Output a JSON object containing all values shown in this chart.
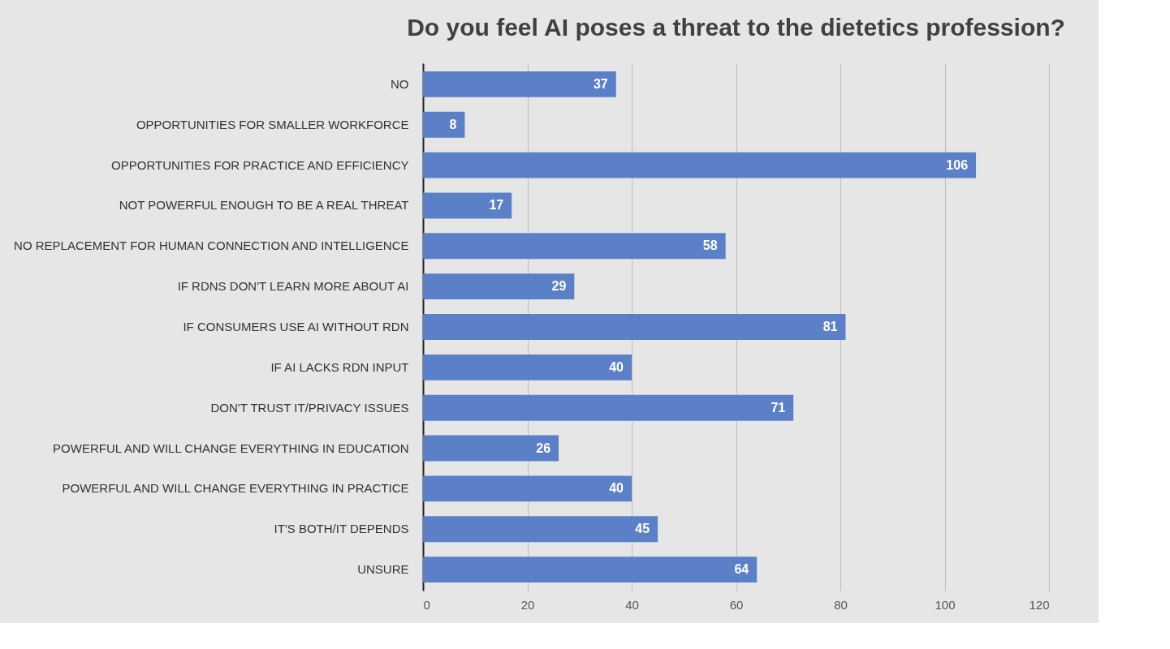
{
  "chart_data": {
    "type": "bar",
    "orientation": "horizontal",
    "title": "Do you feel AI poses a threat to the dietetics profession?",
    "categories": [
      "NO",
      "OPPORTUNITIES FOR SMALLER WORKFORCE",
      "OPPORTUNITIES FOR PRACTICE AND EFFICIENCY",
      "NOT POWERFUL ENOUGH TO BE A REAL THREAT",
      "NO REPLACEMENT FOR HUMAN CONNECTION AND INTELLIGENCE",
      "IF RDNS DON'T LEARN MORE ABOUT AI",
      "IF CONSUMERS USE AI WITHOUT RDN",
      "IF AI LACKS RDN INPUT",
      "DON'T TRUST IT/PRIVACY ISSUES",
      "POWERFUL AND WILL CHANGE EVERYTHING IN EDUCATION",
      "POWERFUL AND WILL CHANGE EVERYTHING IN PRACTICE",
      "IT'S BOTH/IT DEPENDS",
      "UNSURE"
    ],
    "values": [
      37,
      8,
      106,
      17,
      58,
      29,
      81,
      40,
      71,
      26,
      40,
      45,
      64
    ],
    "color": "#5b80c8",
    "xlim": [
      0,
      120
    ],
    "xticks": [
      0,
      20,
      40,
      60,
      80,
      100,
      120
    ],
    "grid": "x",
    "data_labels": true
  }
}
